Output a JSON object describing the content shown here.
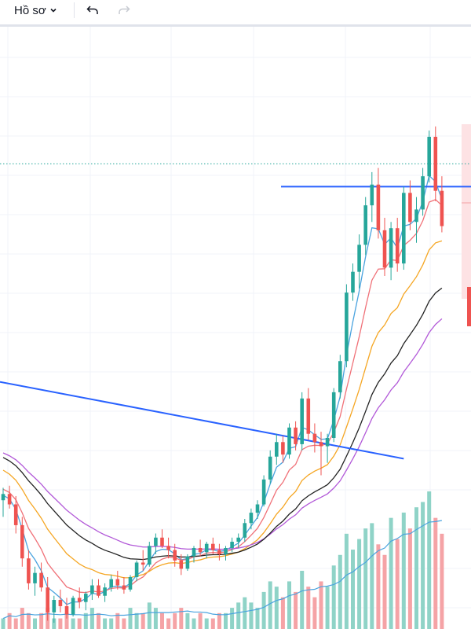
{
  "toolbar": {
    "profile_label": "Hồ sơ",
    "icons": [
      "chevron-down-icon",
      "undo-icon",
      "redo-icon"
    ]
  },
  "colors": {
    "up": "#26a69a",
    "down": "#ef5350",
    "vol_up": "#8fd3c7",
    "vol_down": "#f5a3a6",
    "ma_fast": "#4aa3df",
    "ma_mid": "#f07178",
    "ma_slow": "#f5a623",
    "ma_long": "#b259d8",
    "ma_xlong": "#222222",
    "trendline": "#2962ff",
    "grid": "#f0f3fa",
    "dotted_level": "#26a69a"
  },
  "chart_data": {
    "type": "candlestick",
    "grid": true,
    "candles": [
      [
        25.2,
        25.8,
        24.4,
        25.5
      ],
      [
        25.5,
        25.9,
        24.8,
        25.0
      ],
      [
        25.0,
        25.4,
        23.6,
        24.0
      ],
      [
        24.0,
        24.4,
        22.0,
        22.4
      ],
      [
        22.4,
        22.8,
        20.9,
        21.2
      ],
      [
        21.2,
        22.0,
        20.6,
        21.7
      ],
      [
        21.7,
        22.2,
        20.8,
        21.0
      ],
      [
        21.0,
        21.5,
        19.4,
        19.8
      ],
      [
        19.8,
        20.6,
        19.3,
        20.4
      ],
      [
        20.4,
        20.9,
        19.8,
        20.1
      ],
      [
        20.1,
        20.5,
        19.5,
        19.7
      ],
      [
        19.7,
        20.6,
        19.6,
        20.5
      ],
      [
        20.5,
        21.0,
        20.0,
        20.3
      ],
      [
        20.3,
        20.8,
        19.9,
        20.7
      ],
      [
        20.7,
        21.4,
        20.4,
        21.1
      ],
      [
        21.1,
        21.4,
        20.5,
        20.6
      ],
      [
        20.6,
        21.2,
        20.3,
        21.0
      ],
      [
        21.0,
        21.6,
        20.8,
        21.4
      ],
      [
        21.4,
        21.8,
        20.9,
        21.1
      ],
      [
        21.1,
        21.5,
        20.7,
        20.9
      ],
      [
        20.9,
        21.6,
        20.8,
        21.5
      ],
      [
        21.5,
        22.3,
        21.3,
        22.2
      ],
      [
        22.2,
        22.8,
        21.8,
        22.1
      ],
      [
        22.1,
        23.2,
        22.0,
        23.0
      ],
      [
        23.0,
        23.6,
        22.6,
        23.4
      ],
      [
        23.4,
        23.8,
        22.9,
        23.0
      ],
      [
        23.0,
        23.4,
        22.4,
        22.8
      ],
      [
        22.8,
        23.1,
        22.0,
        22.3
      ],
      [
        22.3,
        22.6,
        21.6,
        21.9
      ],
      [
        21.9,
        22.6,
        21.8,
        22.5
      ],
      [
        22.5,
        23.0,
        22.2,
        22.9
      ],
      [
        22.9,
        23.3,
        22.5,
        22.7
      ],
      [
        22.7,
        23.2,
        22.4,
        23.1
      ],
      [
        23.1,
        23.4,
        22.6,
        22.8
      ],
      [
        22.8,
        23.1,
        22.3,
        22.6
      ],
      [
        22.6,
        23.0,
        22.3,
        22.9
      ],
      [
        22.9,
        23.4,
        22.7,
        23.2
      ],
      [
        23.2,
        23.6,
        22.9,
        23.4
      ],
      [
        23.4,
        24.3,
        23.2,
        24.1
      ],
      [
        24.1,
        24.8,
        23.8,
        24.6
      ],
      [
        24.6,
        25.2,
        24.3,
        25.0
      ],
      [
        25.0,
        26.4,
        24.9,
        26.2
      ],
      [
        26.2,
        27.6,
        26.0,
        27.3
      ],
      [
        27.3,
        28.4,
        26.9,
        28.0
      ],
      [
        28.0,
        28.3,
        27.0,
        27.4
      ],
      [
        27.4,
        28.9,
        27.2,
        28.7
      ],
      [
        28.7,
        29.0,
        27.6,
        27.9
      ],
      [
        27.9,
        30.4,
        27.6,
        30.1
      ],
      [
        30.1,
        30.6,
        28.1,
        28.4
      ],
      [
        28.4,
        28.9,
        27.5,
        28.0
      ],
      [
        28.0,
        28.5,
        26.4,
        27.8
      ],
      [
        27.8,
        28.4,
        27.0,
        28.2
      ],
      [
        28.2,
        30.6,
        28.0,
        30.4
      ],
      [
        30.4,
        32.2,
        30.1,
        31.9
      ],
      [
        31.9,
        35.6,
        31.6,
        35.2
      ],
      [
        35.2,
        36.6,
        34.8,
        36.2
      ],
      [
        36.2,
        38.0,
        35.4,
        37.5
      ],
      [
        37.5,
        39.8,
        37.0,
        39.4
      ],
      [
        39.4,
        41.0,
        38.6,
        40.4
      ],
      [
        40.4,
        41.2,
        37.8,
        38.2
      ],
      [
        38.2,
        38.8,
        36.0,
        36.4
      ],
      [
        36.4,
        38.6,
        35.8,
        38.3
      ],
      [
        38.3,
        38.8,
        36.2,
        36.6
      ],
      [
        36.6,
        40.3,
        36.3,
        40.0
      ],
      [
        40.0,
        40.6,
        38.2,
        38.6
      ],
      [
        38.6,
        39.8,
        37.6,
        39.2
      ],
      [
        39.2,
        41.2,
        38.9,
        40.8
      ],
      [
        40.8,
        43.0,
        40.5,
        42.7
      ],
      [
        42.7,
        43.2,
        39.6,
        40.1
      ],
      [
        40.1,
        40.8,
        38.1,
        38.4
      ]
    ],
    "volume": [
      2,
      3,
      2,
      4,
      3,
      2,
      3,
      4,
      2,
      2,
      3,
      2,
      2,
      3,
      4,
      3,
      2,
      2,
      3,
      2,
      4,
      3,
      3,
      5,
      4,
      3,
      2,
      3,
      4,
      3,
      2,
      3,
      2,
      2,
      3,
      3,
      4,
      5,
      6,
      5,
      4,
      7,
      9,
      8,
      6,
      9,
      7,
      11,
      8,
      6,
      9,
      8,
      12,
      14,
      18,
      15,
      17,
      19,
      20,
      16,
      14,
      21,
      17,
      22,
      19,
      23,
      24,
      26,
      21,
      18
    ],
    "trendline": {
      "start": [
        0,
        30.9
      ],
      "end": [
        69,
        27.2
      ]
    },
    "horizontal_level": 40.3,
    "dotted_level": 41.4,
    "ylim": [
      19,
      48
    ]
  }
}
